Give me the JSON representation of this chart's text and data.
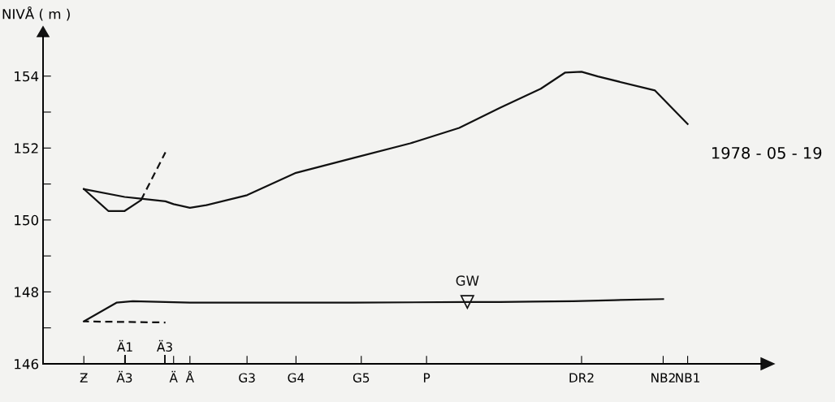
{
  "chart_data": {
    "type": "line",
    "ylabel": "NIVÅ ( m )",
    "ylim": [
      146,
      155.1
    ],
    "yticks": [
      146,
      {
        "value": 147,
        "label": null
      },
      148,
      {
        "value": 149,
        "label": null
      },
      150,
      {
        "value": 151,
        "label": null
      },
      152,
      {
        "value": 153,
        "label": null
      },
      154
    ],
    "categories": [
      null,
      null,
      null,
      null,
      null,
      "Ƶ",
      null,
      null,
      null,
      null,
      "Ä3",
      null,
      null,
      null,
      null,
      null,
      "Ä",
      null,
      "Å",
      null,
      null,
      null,
      null,
      null,
      null,
      "G3",
      null,
      null,
      null,
      null,
      null,
      "G4",
      null,
      null,
      null,
      null,
      null,
      null,
      null,
      "G5",
      null,
      null,
      null,
      null,
      null,
      null,
      null,
      "P",
      null,
      null,
      null,
      null,
      null,
      null,
      null,
      null,
      null,
      null,
      null,
      null,
      null,
      null,
      null,
      null,
      null,
      null,
      "DR2",
      null,
      null,
      null,
      null,
      null,
      null,
      null,
      null,
      null,
      "NB2",
      null,
      null,
      "NB1",
      null,
      null,
      null,
      null,
      null,
      null,
      null,
      null,
      null
    ],
    "series": [
      {
        "color": "#111111",
        "line_style": "solid",
        "values": [
          null,
          null,
          null,
          null,
          null,
          150.86,
          null,
          null,
          null,
          null,
          150.64,
          null,
          150.59,
          null,
          null,
          150.52,
          150.44,
          null,
          150.34,
          null,
          150.41,
          null,
          null,
          null,
          null,
          150.69,
          null,
          null,
          null,
          null,
          null,
          151.31,
          null,
          null,
          null,
          null,
          null,
          null,
          151.72,
          null,
          null,
          null,
          null,
          null,
          null,
          152.13,
          null,
          null,
          null,
          null,
          null,
          152.56,
          null,
          null,
          null,
          null,
          153.12,
          null,
          null,
          null,
          null,
          153.65,
          null,
          null,
          154.1,
          null,
          154.12,
          null,
          153.99,
          null,
          null,
          null,
          null,
          null,
          null,
          153.6,
          null,
          null,
          null,
          152.67,
          null,
          null,
          null,
          null,
          null,
          null,
          null,
          null,
          null
        ]
      },
      {
        "color": "#111111",
        "line_style": "solid",
        "values": [
          null,
          null,
          null,
          null,
          null,
          150.86,
          null,
          null,
          150.25,
          null,
          150.25,
          null,
          150.55,
          null,
          null,
          null,
          null,
          null,
          null,
          null,
          null,
          null,
          null,
          null,
          null,
          null,
          null,
          null,
          null,
          null,
          null,
          null,
          null,
          null,
          null,
          null,
          null,
          null,
          null,
          null,
          null,
          null,
          null,
          null,
          null,
          null,
          null,
          null,
          null,
          null,
          null,
          null,
          null,
          null,
          null,
          null,
          null,
          null,
          null,
          null,
          null,
          null,
          null,
          null,
          null,
          null,
          null,
          null,
          null,
          null,
          null,
          null,
          null,
          null,
          null,
          null,
          null,
          null,
          null,
          null,
          null,
          null,
          null,
          null,
          null,
          null,
          null,
          null,
          null
        ]
      },
      {
        "color": "#111111",
        "line_style": "dashed",
        "values": [
          null,
          null,
          null,
          null,
          null,
          null,
          null,
          null,
          null,
          null,
          null,
          null,
          150.55,
          null,
          null,
          151.88,
          null,
          null,
          null,
          null,
          null,
          null,
          null,
          null,
          null,
          null,
          null,
          null,
          null,
          null,
          null,
          null,
          null,
          null,
          null,
          null,
          null,
          null,
          null,
          null,
          null,
          null,
          null,
          null,
          null,
          null,
          null,
          null,
          null,
          null,
          null,
          null,
          null,
          null,
          null,
          null,
          null,
          null,
          null,
          null,
          null,
          null,
          null,
          null,
          null,
          null,
          null,
          null,
          null,
          null,
          null,
          null,
          null,
          null,
          null,
          null,
          null,
          null,
          null,
          null,
          null,
          null,
          null,
          null,
          null,
          null,
          null,
          null,
          null
        ]
      },
      {
        "name": "GW",
        "color": "#111111",
        "line_style": "solid",
        "values": [
          null,
          null,
          null,
          null,
          null,
          147.18,
          null,
          null,
          null,
          147.7,
          null,
          147.74,
          null,
          null,
          null,
          null,
          null,
          null,
          147.7,
          null,
          null,
          null,
          null,
          null,
          null,
          null,
          null,
          null,
          null,
          null,
          null,
          null,
          null,
          null,
          null,
          null,
          null,
          null,
          147.7,
          null,
          null,
          null,
          null,
          null,
          null,
          null,
          null,
          null,
          null,
          null,
          null,
          null,
          147.72,
          null,
          null,
          null,
          147.72,
          null,
          null,
          null,
          147.73,
          null,
          null,
          null,
          null,
          147.74,
          null,
          null,
          null,
          null,
          147.77,
          null,
          null,
          null,
          null,
          null,
          147.8,
          null,
          null,
          null,
          null,
          null,
          null,
          null,
          null,
          null,
          null,
          null,
          null
        ]
      },
      {
        "color": "#111111",
        "line_style": "dashed",
        "values": [
          null,
          null,
          null,
          null,
          null,
          147.18,
          null,
          null,
          null,
          null,
          null,
          null,
          null,
          null,
          null,
          147.15,
          null,
          null,
          null,
          null,
          null,
          null,
          null,
          null,
          null,
          null,
          null,
          null,
          null,
          null,
          null,
          null,
          null,
          null,
          null,
          null,
          null,
          null,
          null,
          null,
          null,
          null,
          null,
          null,
          null,
          null,
          null,
          null,
          null,
          null,
          null,
          null,
          null,
          null,
          null,
          null,
          null,
          null,
          null,
          null,
          null,
          null,
          null,
          null,
          null,
          null,
          null,
          null,
          null,
          null,
          null,
          null,
          null,
          null,
          null,
          null,
          null,
          null,
          null,
          null,
          null,
          null,
          null,
          null,
          null,
          null,
          null,
          null,
          null
        ]
      }
    ],
    "annotations": [
      "Ä1",
      "Ä3",
      "1978 - 05 - 19"
    ],
    "grid": false,
    "legend": false
  }
}
